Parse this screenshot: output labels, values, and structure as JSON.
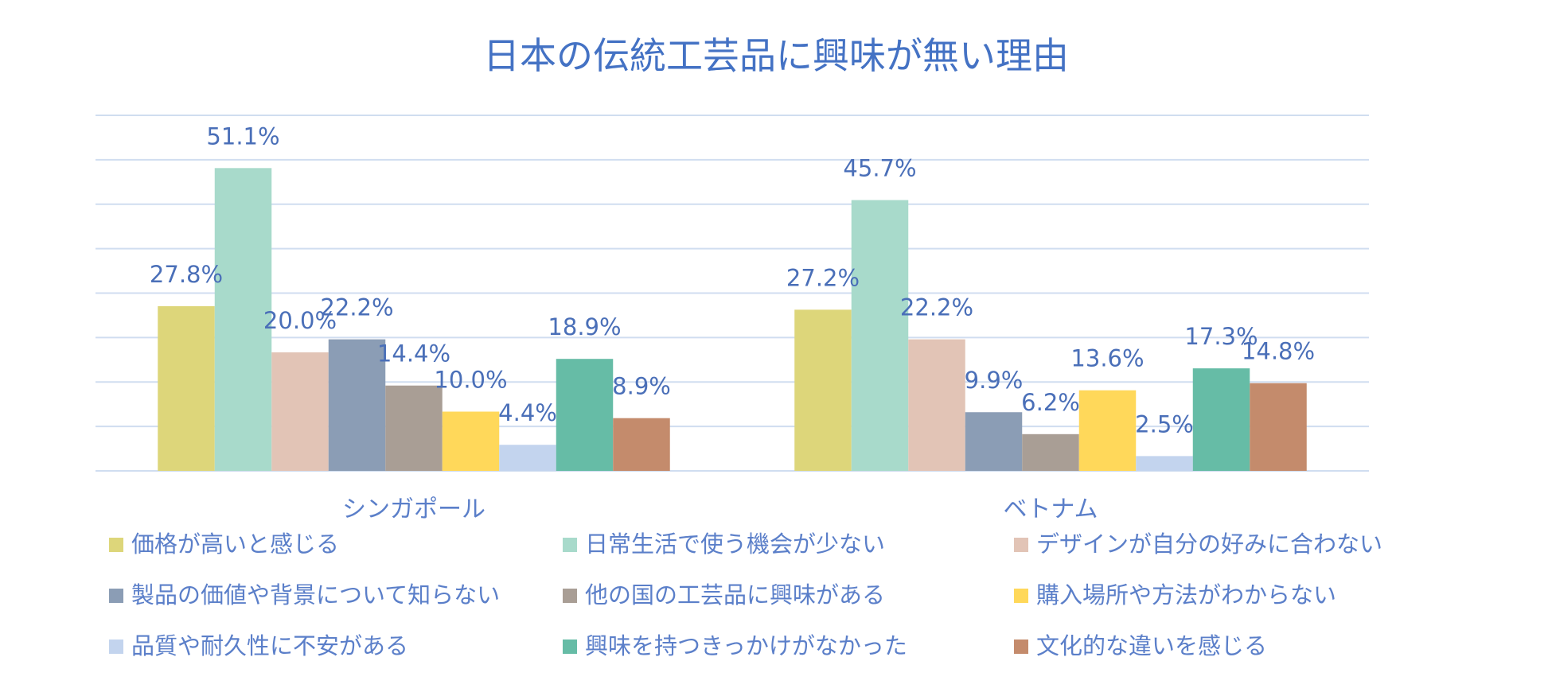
{
  "chart_data": {
    "type": "bar",
    "title": "日本の伝統工芸品に興味が無い理由",
    "xlabel": "",
    "ylabel": "",
    "ylim": [
      0,
      60
    ],
    "grid": true,
    "legend_position": "bottom",
    "categories": [
      "シンガポール",
      "ベトナム"
    ],
    "series": [
      {
        "name": "価格が高いと感じる",
        "color": "#DDD67A",
        "values": [
          27.8,
          27.2
        ],
        "labels": [
          "27.8%",
          "27.2%"
        ]
      },
      {
        "name": "日常生活で使う機会が少ない",
        "color": "#A8DACB",
        "values": [
          51.1,
          45.7
        ],
        "labels": [
          "51.1%",
          "45.7%"
        ]
      },
      {
        "name": "デザインが自分の好みに合わない",
        "color": "#E2C4B6",
        "values": [
          20.0,
          22.2
        ],
        "labels": [
          "20.0%",
          "22.2%"
        ]
      },
      {
        "name": "製品の価値や背景について知らない",
        "color": "#8B9DB5",
        "values": [
          22.2,
          9.9
        ],
        "labels": [
          "22.2%",
          "9.9%"
        ]
      },
      {
        "name": "他の国の工芸品に興味がある",
        "color": "#A99E95",
        "values": [
          14.4,
          6.2
        ],
        "labels": [
          "14.4%",
          "6.2%"
        ]
      },
      {
        "name": "購入場所や方法がわからない",
        "color": "#FFD85A",
        "values": [
          10.0,
          13.6
        ],
        "labels": [
          "10.0%",
          "13.6%"
        ]
      },
      {
        "name": "品質や耐久性に不安がある",
        "color": "#C3D4EE",
        "values": [
          4.4,
          2.5
        ],
        "labels": [
          "4.4%",
          "2.5%"
        ]
      },
      {
        "name": "興味を持つきっかけがなかった",
        "color": "#66BCA6",
        "values": [
          18.9,
          17.3
        ],
        "labels": [
          "18.9%",
          "17.3%"
        ]
      },
      {
        "name": "文化的な違いを感じる",
        "color": "#C48B6C",
        "values": [
          8.9,
          14.8
        ],
        "labels": [
          "8.9%",
          "14.8%"
        ]
      }
    ]
  }
}
